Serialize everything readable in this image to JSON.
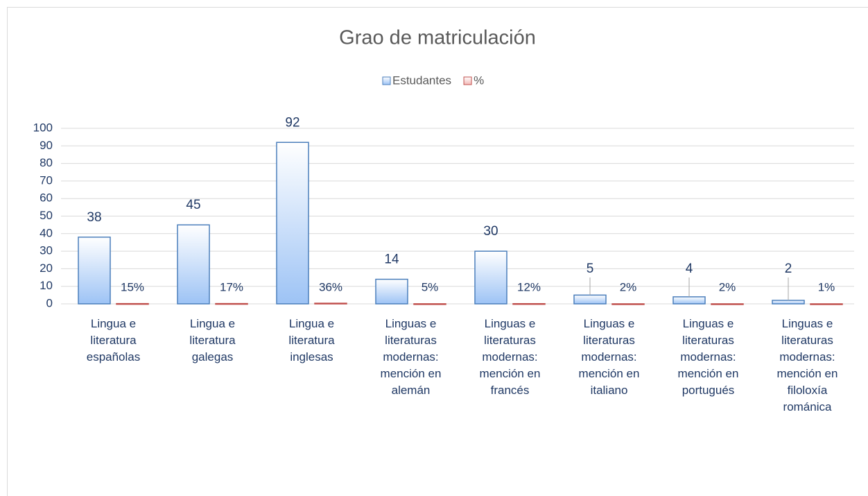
{
  "chart_data": {
    "type": "bar",
    "title": "Grao de matriculación",
    "categories": [
      "Lingua e literatura españolas",
      "Lingua e literatura galegas",
      "Lingua e literatura inglesas",
      "Linguas e literaturas modernas: mención en alemán",
      "Linguas e literaturas modernas: mención en francés",
      "Linguas e literaturas modernas: mención en italiano",
      "Linguas e literaturas modernas: mención en portugués",
      "Linguas e literaturas modernas: mención en filoloxía románica"
    ],
    "series": [
      {
        "name": "Estudantes",
        "color": "#9dc3f5",
        "values": [
          38,
          45,
          92,
          14,
          30,
          5,
          4,
          2
        ]
      },
      {
        "name": "%",
        "color": "#f2b8b6",
        "values": [
          0.15,
          0.17,
          0.36,
          0.05,
          0.12,
          0.02,
          0.02,
          0.01
        ],
        "value_labels": [
          "15%",
          "17%",
          "36%",
          "5%",
          "12%",
          "2%",
          "2%",
          "1%"
        ]
      }
    ],
    "ylim": [
      0,
      100
    ],
    "yticks": [
      0,
      10,
      20,
      30,
      40,
      50,
      60,
      70,
      80,
      90,
      100
    ],
    "grid": true,
    "legend": "top"
  }
}
